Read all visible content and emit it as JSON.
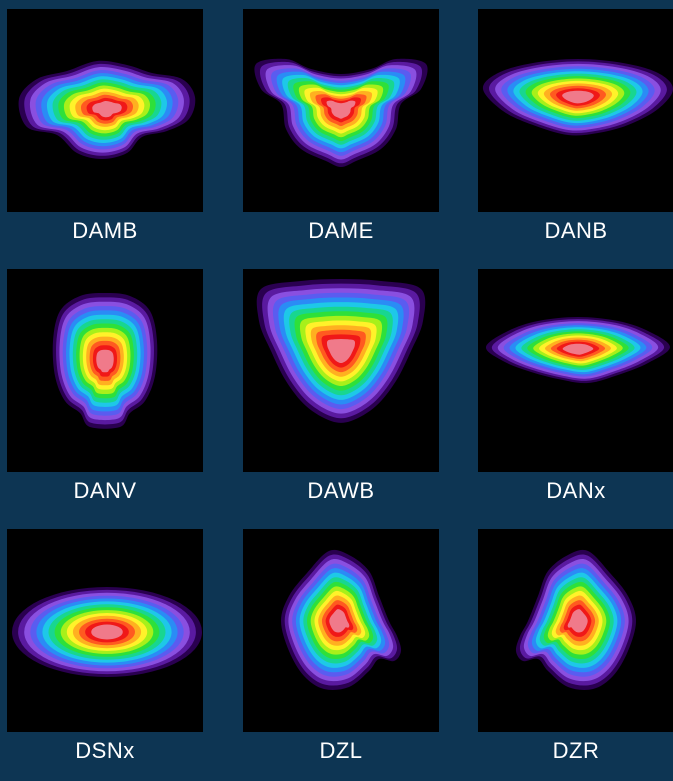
{
  "panels": [
    {
      "label": "DAMB",
      "shape": "wide-bar"
    },
    {
      "label": "DAME",
      "shape": "butterfly"
    },
    {
      "label": "DANB",
      "shape": "wide-lens"
    },
    {
      "label": "DANV",
      "shape": "tall-capsule"
    },
    {
      "label": "DAWB",
      "shape": "shield"
    },
    {
      "label": "DANx",
      "shape": "thin-lens"
    },
    {
      "label": "DSNx",
      "shape": "ellipse"
    },
    {
      "label": "DZL",
      "shape": "blob-left"
    },
    {
      "label": "DZR",
      "shape": "blob-right"
    }
  ],
  "contour_colors": [
    "#2a0050",
    "#5a1aa0",
    "#8a4fe0",
    "#5a5cf0",
    "#2a8cf5",
    "#1ec8e8",
    "#18d690",
    "#2ee03a",
    "#a8f01a",
    "#fff22a",
    "#ffb020",
    "#ff5a20",
    "#f01818",
    "#f07a8a"
  ]
}
